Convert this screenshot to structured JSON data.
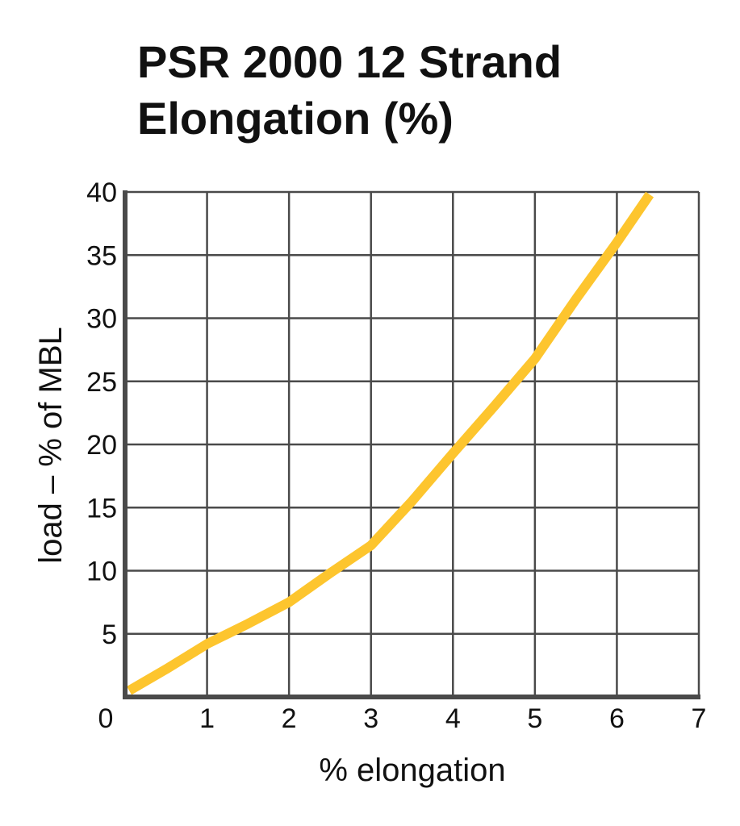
{
  "chart_data": {
    "type": "line",
    "title_lines": [
      "PSR 2000 12 Strand",
      "Elongation (%)"
    ],
    "xlabel": "% elongation",
    "ylabel": "load – % of MBL",
    "xlim": [
      0,
      7
    ],
    "ylim": [
      0,
      40
    ],
    "x_ticks": [
      "0",
      "1",
      "2",
      "3",
      "4",
      "5",
      "6",
      "7"
    ],
    "y_ticks": [
      "5",
      "10",
      "15",
      "20",
      "25",
      "30",
      "35",
      "40"
    ],
    "grid": true,
    "colors": {
      "line": "#fdc52e",
      "grid": "#4a4a4a",
      "axis": "#4a4a4a",
      "text": "#111111"
    },
    "series": [
      {
        "x": [
          0.05,
          0.5,
          1.0,
          1.5,
          2.0,
          2.5,
          3.0,
          3.5,
          4.0,
          4.5,
          5.0,
          5.5,
          6.0,
          6.4
        ],
        "y": [
          0.5,
          2.2,
          4.2,
          5.8,
          7.5,
          9.8,
          12.0,
          15.5,
          19.3,
          23.0,
          26.8,
          31.5,
          36.0,
          39.8
        ]
      }
    ]
  }
}
